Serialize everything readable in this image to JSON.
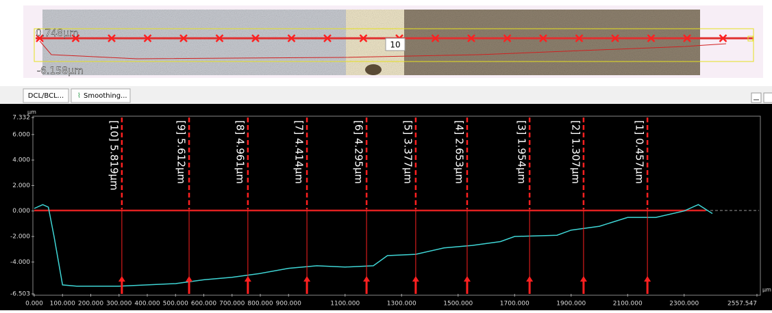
{
  "image_panel": {
    "top_label": "0.748μm",
    "bottom_label": "-6.158μm",
    "marker_count_label": "10"
  },
  "toolbar": {
    "buttons": [
      "DCL/BCL...",
      "Smoothing..."
    ]
  },
  "chart_data": {
    "type": "line",
    "y_unit": "μm",
    "x_unit": "μm",
    "xlim": [
      0,
      2557.547
    ],
    "ylim": [
      -6.503,
      7.332
    ],
    "yticks": [
      7.332,
      {
        "value": 6,
        "label": "6.000"
      },
      {
        "value": 4,
        "label": "4.000"
      },
      {
        "value": 2,
        "label": "2.000"
      },
      {
        "value": 0,
        "label": "0.000"
      },
      {
        "value": -2,
        "label": "-2.000"
      },
      {
        "value": -4,
        "label": "-4.000"
      },
      -6.503
    ],
    "xticks": [
      {
        "value": 0,
        "label": "0.000"
      },
      {
        "value": 100,
        "label": "100.000"
      },
      {
        "value": 200,
        "label": "200.000"
      },
      {
        "value": 300,
        "label": "300.000"
      },
      {
        "value": 400,
        "label": "400.000"
      },
      {
        "value": 500,
        "label": "500.000"
      },
      {
        "value": 600,
        "label": "600.000"
      },
      {
        "value": 700,
        "label": "700.000"
      },
      {
        "value": 800,
        "label": "800.000"
      },
      {
        "value": 900,
        "label": "900.000"
      },
      {
        "value": 1100,
        "label": "1100.000"
      },
      {
        "value": 1300,
        "label": "1300.000"
      },
      {
        "value": 1500,
        "label": "1500.000"
      },
      {
        "value": 1700,
        "label": "1700.000"
      },
      {
        "value": 1900,
        "label": "1900.000"
      },
      {
        "value": 2100,
        "label": "2100.000"
      },
      {
        "value": 2300,
        "label": "2300.000"
      },
      2557.547
    ],
    "series": [
      {
        "color": "#3fd6d6",
        "x": [
          0,
          30,
          50,
          70,
          100,
          150,
          300,
          500,
          600,
          700,
          800,
          900,
          1000,
          1100,
          1200,
          1250,
          1350,
          1450,
          1550,
          1650,
          1700,
          1850,
          1900,
          2000,
          2100,
          2200,
          2300,
          2350,
          2400
        ],
        "values": [
          0.2,
          0.5,
          0.3,
          -2,
          -5.8,
          -5.9,
          -5.9,
          -5.7,
          -5.4,
          -5.2,
          -4.9,
          -4.5,
          -4.3,
          -4.4,
          -4.3,
          -3.5,
          -3.4,
          -2.9,
          -2.7,
          -2.4,
          -2.0,
          -1.9,
          -1.5,
          -1.2,
          -0.5,
          -0.5,
          0,
          0.5,
          -0.2
        ]
      }
    ],
    "markers": [
      {
        "x": 310,
        "label": "[10] 5.819μm"
      },
      {
        "x": 548,
        "label": "[9] 5.612μm"
      },
      {
        "x": 756,
        "label": "[8] 4.961μm"
      },
      {
        "x": 965,
        "label": "[7] 4.414μm"
      },
      {
        "x": 1176,
        "label": "[6] 4.295μm"
      },
      {
        "x": 1350,
        "label": "[5] 3.377μm"
      },
      {
        "x": 1532,
        "label": "[4] 2.653μm"
      },
      {
        "x": 1753,
        "label": "[3] 1.954μm"
      },
      {
        "x": 1944,
        "label": "[2] 1.307μm"
      },
      {
        "x": 2170,
        "label": "[1] 0.457μm"
      }
    ]
  }
}
